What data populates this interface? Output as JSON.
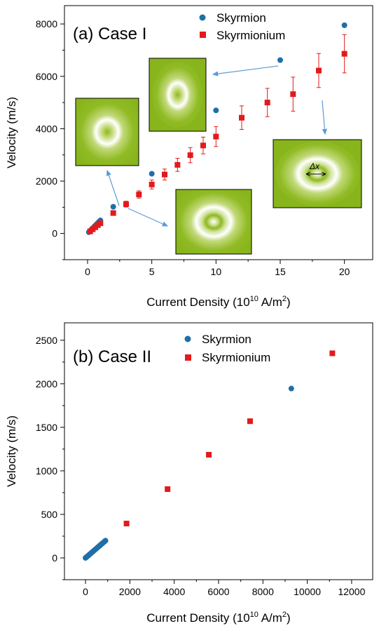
{
  "chart_data": [
    {
      "type": "scatter",
      "title": "(a) Case I",
      "xlabel": "Current Density (10",
      "xlabel_exp": "10",
      "xlabel_unit": " A/m",
      "xlabel_exp2": "2",
      "xlabel_close": ")",
      "ylabel": "Velocity (m/s)",
      "xlim": [
        -1.8,
        22.2
      ],
      "ylim": [
        -1000,
        8700
      ],
      "xticks": [
        0,
        5,
        10,
        15,
        20
      ],
      "yticks": [
        0,
        2000,
        4000,
        6000,
        8000
      ],
      "legend_position": "top-right",
      "series": [
        {
          "name": "Skyrmion",
          "marker": "circle",
          "color": "#1f6fa8",
          "x": [
            0.1,
            0.2,
            0.3,
            0.4,
            0.5,
            0.6,
            0.7,
            0.8,
            0.9,
            1.0,
            2,
            5,
            10,
            15,
            20
          ],
          "y": [
            50,
            100,
            150,
            200,
            250,
            300,
            350,
            400,
            450,
            500,
            1020,
            2280,
            4700,
            6620,
            7950
          ]
        },
        {
          "name": "Skyrmionium",
          "marker": "square",
          "color": "#e31a1c",
          "x": [
            0.2,
            0.4,
            0.6,
            0.8,
            1.0,
            2,
            3,
            4,
            5,
            6,
            7,
            8,
            9,
            10,
            12,
            14,
            16,
            18,
            20
          ],
          "y": [
            80,
            160,
            240,
            320,
            390,
            780,
            1120,
            1490,
            1870,
            2250,
            2620,
            2990,
            3360,
            3700,
            4420,
            5000,
            5320,
            6220,
            6860
          ],
          "err": [
            10,
            20,
            30,
            40,
            50,
            80,
            110,
            140,
            170,
            210,
            250,
            290,
            320,
            380,
            450,
            540,
            650,
            650,
            730
          ]
        }
      ],
      "annotation": "Δx"
    },
    {
      "type": "scatter",
      "title": "(b) Case II",
      "xlabel": "Current Density (10",
      "xlabel_exp": "10",
      "xlabel_unit": " A/m",
      "xlabel_exp2": "2",
      "xlabel_close": ")",
      "ylabel": "Velocity (m/s)",
      "xlim": [
        -950,
        12950
      ],
      "ylim": [
        -250,
        2700
      ],
      "xticks": [
        0,
        2000,
        4000,
        6000,
        8000,
        10000,
        12000
      ],
      "yticks": [
        0,
        500,
        1000,
        1500,
        2000,
        2500
      ],
      "legend_position": "top-left",
      "series": [
        {
          "name": "Skyrmion",
          "marker": "circle",
          "color": "#1f6fa8",
          "x": [
            0,
            50,
            100,
            150,
            200,
            250,
            300,
            350,
            400,
            450,
            500,
            550,
            600,
            650,
            700,
            750,
            800,
            850,
            900,
            9280
          ],
          "y": [
            0,
            11,
            22,
            33,
            44,
            55,
            66,
            77,
            88,
            99,
            110,
            121,
            132,
            143,
            154,
            165,
            176,
            187,
            198,
            1945
          ]
        },
        {
          "name": "Skyrmionium",
          "marker": "square",
          "color": "#e31a1c",
          "x": [
            1850,
            3700,
            5560,
            7420,
            11130
          ],
          "y": [
            395,
            790,
            1185,
            1570,
            2350
          ]
        }
      ]
    }
  ]
}
